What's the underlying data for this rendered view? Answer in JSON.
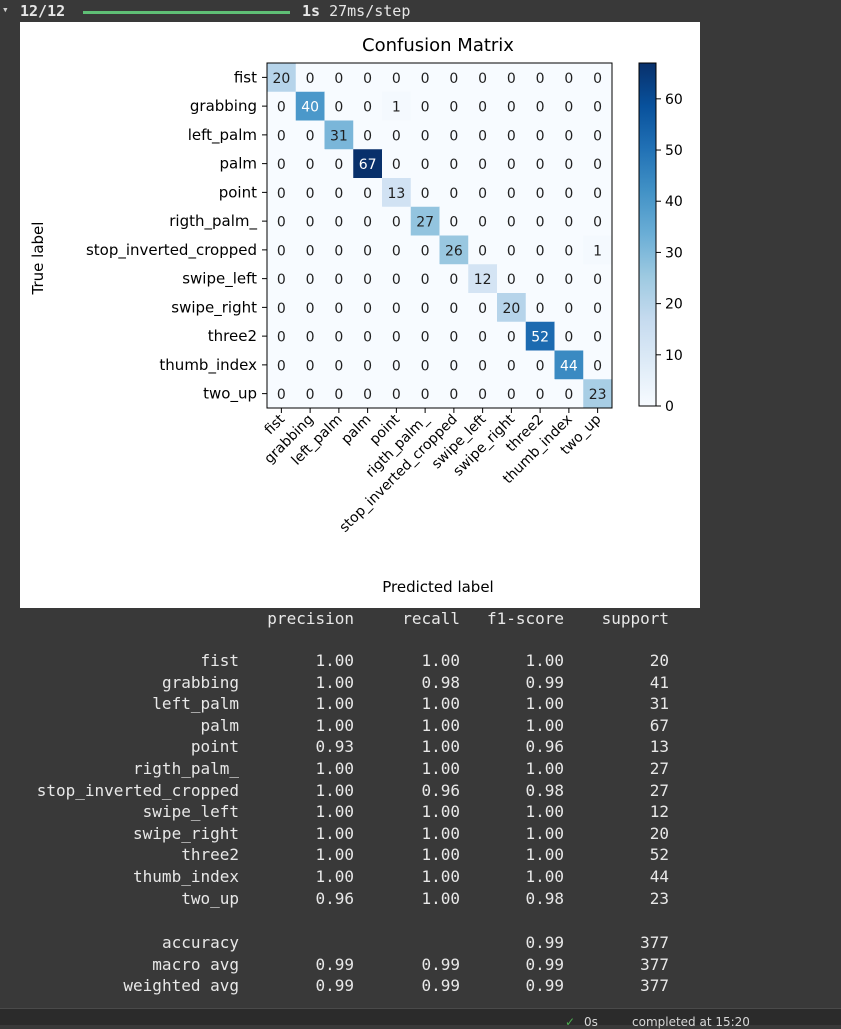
{
  "progress": {
    "chevron": "▾",
    "steps": "12/12",
    "time": "1s",
    "per_step": "27ms/step",
    "fraction": 1.0,
    "bar_color": "#5fbf76"
  },
  "chart_data": {
    "type": "heatmap",
    "title": "Confusion Matrix",
    "xlabel": "Predicted label",
    "ylabel": "True label",
    "colormap": "Blues",
    "labels": [
      "fist",
      "grabbing",
      "left_palm",
      "palm",
      "point",
      "rigth_palm_",
      "stop_inverted_cropped",
      "swipe_left",
      "swipe_right",
      "three2",
      "thumb_index",
      "two_up"
    ],
    "matrix": [
      [
        20,
        0,
        0,
        0,
        0,
        0,
        0,
        0,
        0,
        0,
        0,
        0
      ],
      [
        0,
        40,
        0,
        0,
        1,
        0,
        0,
        0,
        0,
        0,
        0,
        0
      ],
      [
        0,
        0,
        31,
        0,
        0,
        0,
        0,
        0,
        0,
        0,
        0,
        0
      ],
      [
        0,
        0,
        0,
        67,
        0,
        0,
        0,
        0,
        0,
        0,
        0,
        0
      ],
      [
        0,
        0,
        0,
        0,
        13,
        0,
        0,
        0,
        0,
        0,
        0,
        0
      ],
      [
        0,
        0,
        0,
        0,
        0,
        27,
        0,
        0,
        0,
        0,
        0,
        0
      ],
      [
        0,
        0,
        0,
        0,
        0,
        0,
        26,
        0,
        0,
        0,
        0,
        1
      ],
      [
        0,
        0,
        0,
        0,
        0,
        0,
        0,
        12,
        0,
        0,
        0,
        0
      ],
      [
        0,
        0,
        0,
        0,
        0,
        0,
        0,
        0,
        20,
        0,
        0,
        0
      ],
      [
        0,
        0,
        0,
        0,
        0,
        0,
        0,
        0,
        0,
        52,
        0,
        0
      ],
      [
        0,
        0,
        0,
        0,
        0,
        0,
        0,
        0,
        0,
        0,
        44,
        0
      ],
      [
        0,
        0,
        0,
        0,
        0,
        0,
        0,
        0,
        0,
        0,
        0,
        23
      ]
    ],
    "colorbar": {
      "min": 0,
      "max": 67,
      "ticks": [
        0,
        10,
        20,
        30,
        40,
        50,
        60
      ]
    }
  },
  "report": {
    "headers": [
      "precision",
      "recall",
      "f1-score",
      "support"
    ],
    "rows": [
      {
        "label": "fist",
        "precision": "1.00",
        "recall": "1.00",
        "f1": "1.00",
        "support": "20"
      },
      {
        "label": "grabbing",
        "precision": "1.00",
        "recall": "0.98",
        "f1": "0.99",
        "support": "41"
      },
      {
        "label": "left_palm",
        "precision": "1.00",
        "recall": "1.00",
        "f1": "1.00",
        "support": "31"
      },
      {
        "label": "palm",
        "precision": "1.00",
        "recall": "1.00",
        "f1": "1.00",
        "support": "67"
      },
      {
        "label": "point",
        "precision": "0.93",
        "recall": "1.00",
        "f1": "0.96",
        "support": "13"
      },
      {
        "label": "rigth_palm_",
        "precision": "1.00",
        "recall": "1.00",
        "f1": "1.00",
        "support": "27"
      },
      {
        "label": "stop_inverted_cropped",
        "precision": "1.00",
        "recall": "0.96",
        "f1": "0.98",
        "support": "27"
      },
      {
        "label": "swipe_left",
        "precision": "1.00",
        "recall": "1.00",
        "f1": "1.00",
        "support": "12"
      },
      {
        "label": "swipe_right",
        "precision": "1.00",
        "recall": "1.00",
        "f1": "1.00",
        "support": "20"
      },
      {
        "label": "three2",
        "precision": "1.00",
        "recall": "1.00",
        "f1": "1.00",
        "support": "52"
      },
      {
        "label": "thumb_index",
        "precision": "1.00",
        "recall": "1.00",
        "f1": "1.00",
        "support": "44"
      },
      {
        "label": "two_up",
        "precision": "0.96",
        "recall": "1.00",
        "f1": "0.98",
        "support": "23"
      }
    ],
    "summary": [
      {
        "label": "accuracy",
        "precision": "",
        "recall": "",
        "f1": "0.99",
        "support": "377"
      },
      {
        "label": "macro avg",
        "precision": "0.99",
        "recall": "0.99",
        "f1": "0.99",
        "support": "377"
      },
      {
        "label": "weighted avg",
        "precision": "0.99",
        "recall": "0.99",
        "f1": "0.99",
        "support": "377"
      }
    ]
  },
  "statusbar": {
    "check_icon": "check-icon",
    "time": "0s",
    "text": "completed at 15:20"
  }
}
